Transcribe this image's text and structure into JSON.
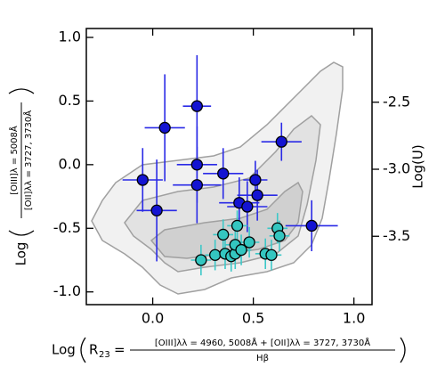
{
  "chart_data": {
    "type": "scatter",
    "ylabel_prefix": "Log",
    "ylabel_numerator": "[OIII]λ = 5008Å",
    "ylabel_denominator": "[OII]λλ = 3727, 3730Å",
    "xlabel_prefix": "Log",
    "xlabel_symbol": "R",
    "xlabel_subscript": "23",
    "xlabel_equals": "=",
    "xlabel_numerator": "[OIII]λλ = 4960, 5008Å + [OII]λλ = 3727, 3730Å",
    "xlabel_denominator": "Hβ",
    "y2label": "Log(U)",
    "xlim": [
      -0.33,
      1.09
    ],
    "ylim": [
      -1.1,
      1.07
    ],
    "y2lim": [
      -4.01,
      -1.95
    ],
    "xticks": [
      {
        "value": 0,
        "label": "0.0"
      },
      {
        "value": 0.5,
        "label": "0.5"
      },
      {
        "value": 1,
        "label": "1.0"
      }
    ],
    "yticks": [
      {
        "value": -1,
        "label": "-1.0"
      },
      {
        "value": -0.5,
        "label": "-0.5"
      },
      {
        "value": 0,
        "label": "0.0"
      },
      {
        "value": 0.5,
        "label": "0.5"
      },
      {
        "value": 1,
        "label": "1.0"
      }
    ],
    "y2ticks": [
      -2.5,
      {
        "value": -3,
        "label": "-3.0"
      },
      -3.5
    ],
    "series": [
      {
        "color": "#1414d2",
        "errcolor": "#2a2ae6",
        "x": [
          -0.05,
          0.02,
          0.06,
          0.22,
          0.22,
          0.22,
          0.35,
          0.43,
          0.47,
          0.51,
          0.52,
          0.64,
          0.79
        ],
        "values": [
          -0.12,
          -0.36,
          0.29,
          0.46,
          0.0,
          -0.16,
          -0.07,
          -0.3,
          -0.33,
          -0.12,
          -0.24,
          0.18,
          -0.48
        ],
        "xerr": [
          0.1,
          0.1,
          0.1,
          0.07,
          0.1,
          0.12,
          0.1,
          0.1,
          0.1,
          0.06,
          0.1,
          0.1,
          0.13
        ],
        "yerr": [
          0.25,
          0.4,
          0.42,
          0.4,
          0.3,
          0.3,
          0.2,
          0.2,
          0.2,
          0.15,
          0.2,
          0.15,
          0.2
        ]
      },
      {
        "color": "#34c6c0",
        "errcolor": "#3cc8c8",
        "x": [
          0.24,
          0.31,
          0.35,
          0.36,
          0.39,
          0.41,
          0.41,
          0.42,
          0.44,
          0.48,
          0.56,
          0.59,
          0.62,
          0.63
        ],
        "values": [
          -0.75,
          -0.71,
          -0.55,
          -0.7,
          -0.72,
          -0.7,
          -0.63,
          -0.48,
          -0.67,
          -0.61,
          -0.7,
          -0.71,
          -0.5,
          -0.56
        ],
        "xerr": [
          0.05,
          0.05,
          0.05,
          0.05,
          0.05,
          0.05,
          0.05,
          0.05,
          0.05,
          0.05,
          0.05,
          0.05,
          0.05,
          0.05
        ],
        "yerr": [
          0.12,
          0.12,
          0.12,
          0.12,
          0.12,
          0.12,
          0.12,
          0.12,
          0.12,
          0.12,
          0.12,
          0.12,
          0.12,
          0.12
        ]
      }
    ]
  }
}
